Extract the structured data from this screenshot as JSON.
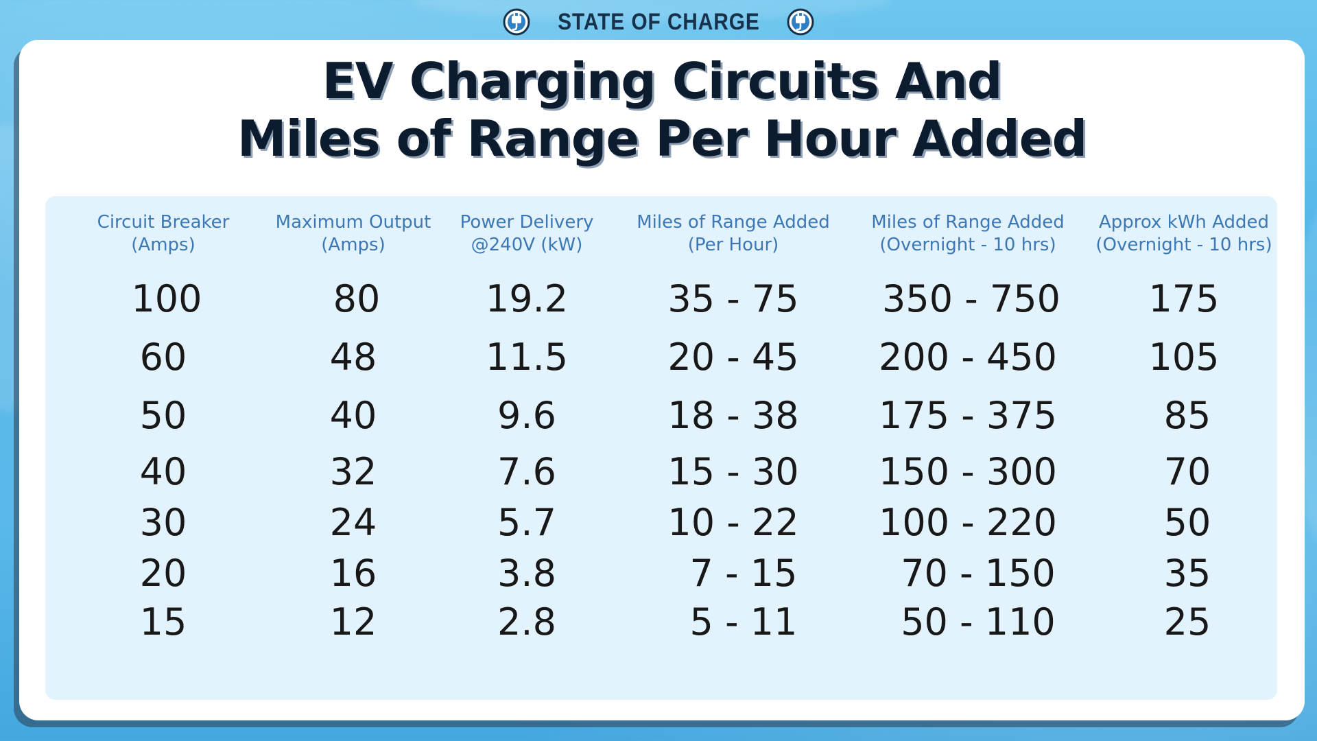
{
  "brand": {
    "name": "STATE OF CHARGE",
    "icon": "plug-icon"
  },
  "title": {
    "line1": "EV Charging Circuits And",
    "line2": "Miles of Range Per Hour Added"
  },
  "colors": {
    "header_text": "#3b78b5",
    "panel_bg": "#e3f3fd",
    "title_text": "#0d1b2e"
  },
  "chart_data": {
    "type": "table",
    "columns": [
      {
        "line1": "Circuit Breaker",
        "line2": "(Amps)"
      },
      {
        "line1": "Maximum Output",
        "line2": "(Amps)"
      },
      {
        "line1": "Power Delivery",
        "line2": "@240V (kW)"
      },
      {
        "line1": "Miles of Range Added",
        "line2": "(Per Hour)"
      },
      {
        "line1": "Miles of Range Added",
        "line2": "(Overnight - 10 hrs)"
      },
      {
        "line1": "Approx kWh Added",
        "line2": "(Overnight - 10 hrs)"
      }
    ],
    "rows": [
      [
        "100",
        "80",
        "19.2",
        "35 - 75",
        "350 - 750",
        "175"
      ],
      [
        "60",
        "48",
        "11.5",
        "20 - 45",
        "200 - 450",
        "105"
      ],
      [
        "50",
        "40",
        "9.6",
        "18 - 38",
        "175 - 375",
        "85"
      ],
      [
        "40",
        "32",
        "7.6",
        "15 - 30",
        "150 - 300",
        "70"
      ],
      [
        "30",
        "24",
        "5.7",
        "10 - 22",
        "100 - 220",
        "50"
      ],
      [
        "20",
        "16",
        "3.8",
        "7 - 15",
        "70 - 150",
        "35"
      ],
      [
        "15",
        "12",
        "2.8",
        "5 - 11",
        "50 - 110",
        "25"
      ]
    ]
  }
}
